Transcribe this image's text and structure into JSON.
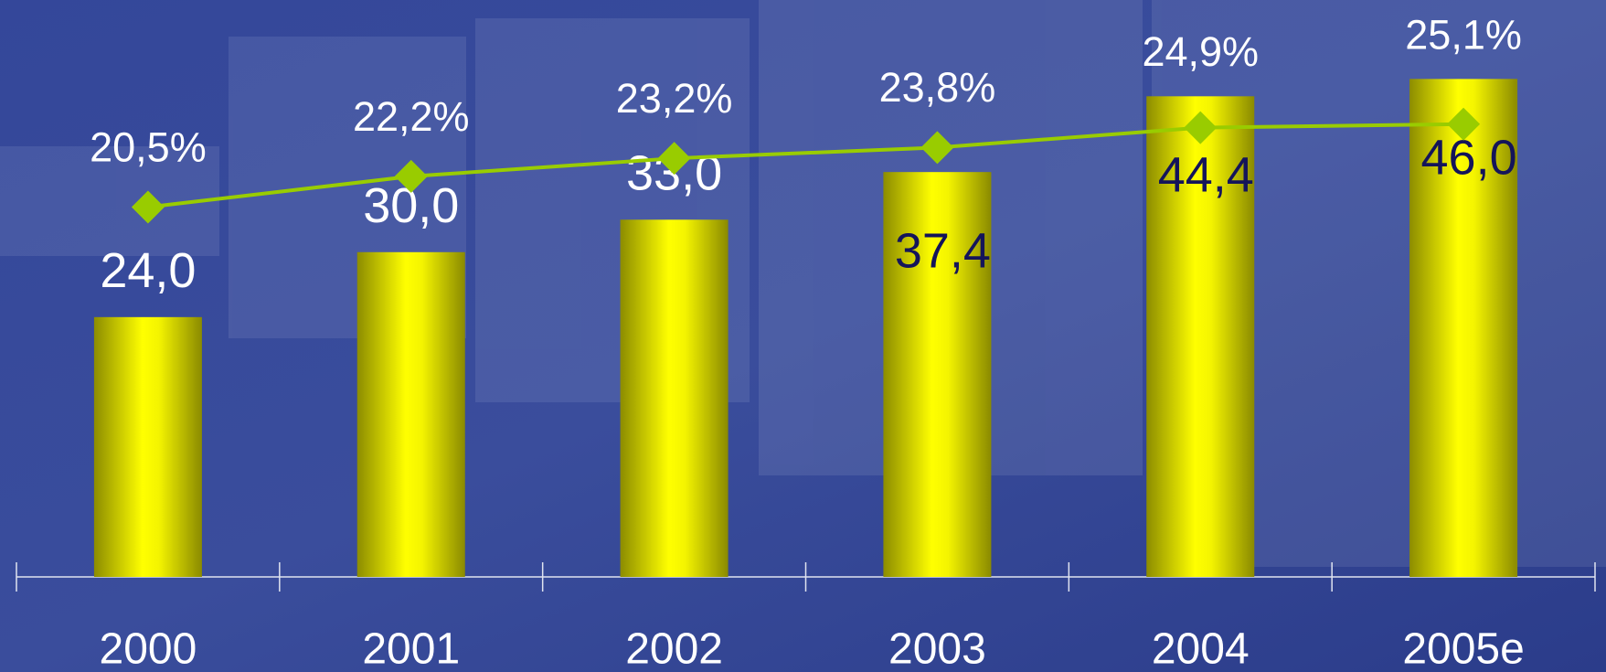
{
  "chart_data": {
    "type": "bar",
    "categories": [
      "2000",
      "2001",
      "2002",
      "2003",
      "2004",
      "2005e"
    ],
    "ylim": [
      0,
      50
    ],
    "y2lim": [
      0,
      30
    ],
    "series": [
      {
        "type": "bar",
        "color": "#ffff00",
        "values": [
          24.0,
          30.0,
          33.0,
          37.4,
          44.4,
          46.0
        ],
        "value_labels": [
          "24,0",
          "30,0",
          "33,0",
          "37,4",
          "44,4",
          "46,0"
        ]
      },
      {
        "type": "line",
        "axis": "y2",
        "color": "#99cc00",
        "values": [
          20.5,
          22.2,
          23.2,
          23.8,
          24.9,
          25.1
        ],
        "value_labels": [
          "20,5%",
          "22,2%",
          "23,2%",
          "23,8%",
          "24,9%",
          "25,1%"
        ]
      }
    ]
  }
}
